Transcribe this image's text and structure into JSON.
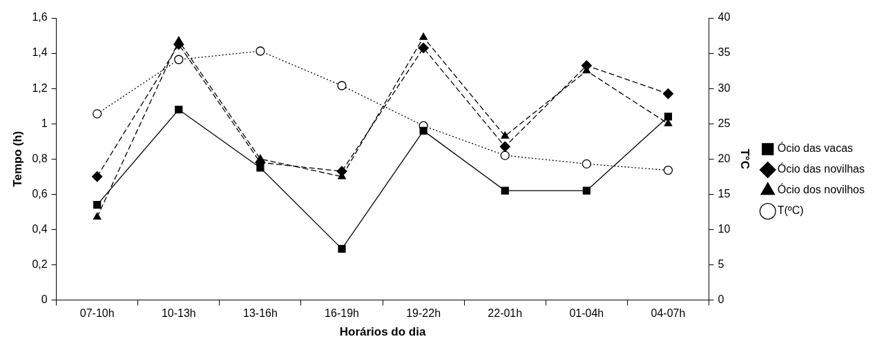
{
  "chart_data": {
    "type": "line",
    "xlabel": "Horários do dia",
    "ylabel": "Tempo (h)",
    "y2label": "T°C",
    "categories": [
      "07-10h",
      "10-13h",
      "13-16h",
      "16-19h",
      "19-22h",
      "22-01h",
      "01-04h",
      "04-07h"
    ],
    "series": [
      {
        "name": "Ócio das vacas",
        "color": "#000000",
        "marker": "square",
        "line_style": "solid",
        "values": [
          0.54,
          1.08,
          0.75,
          0.29,
          0.96,
          0.62,
          0.62,
          1.04
        ]
      },
      {
        "name": "Ócio das novilhas",
        "color": "#000000",
        "marker": "diamond",
        "line_style": "dashed",
        "values": [
          0.7,
          1.45,
          0.78,
          0.73,
          1.43,
          0.87,
          1.33,
          1.17
        ]
      },
      {
        "name": "Ócio dos novilhos",
        "color": "#000000",
        "marker": "triangle",
        "line_style": "dashed",
        "values": [
          0.47,
          1.47,
          0.8,
          0.7,
          1.49,
          0.93,
          1.3,
          1.0
        ]
      },
      {
        "name": "T(ºC)",
        "color": "#000000",
        "marker": "circle",
        "line_style": "dotted",
        "axis": "y2",
        "values": [
          26.4,
          34.1,
          35.3,
          30.4,
          24.7,
          20.5,
          19.3,
          18.4
        ]
      }
    ],
    "ylim": [
      0,
      1.6
    ],
    "yticks": [
      0,
      {
        "value": 0.2,
        "label": "0,2"
      },
      {
        "value": 0.4,
        "label": "0,4"
      },
      {
        "value": 0.6,
        "label": "0,6"
      },
      {
        "value": 0.8,
        "label": "0,8"
      },
      1,
      {
        "value": 1.2,
        "label": "1,2"
      },
      {
        "value": 1.4,
        "label": "1,4"
      },
      {
        "value": 1.6,
        "label": "1,6"
      }
    ],
    "y2lim": [
      0,
      40
    ],
    "y2ticks": [
      0,
      5,
      10,
      15,
      20,
      25,
      30,
      35,
      40
    ],
    "grid": false,
    "legend": "right"
  }
}
